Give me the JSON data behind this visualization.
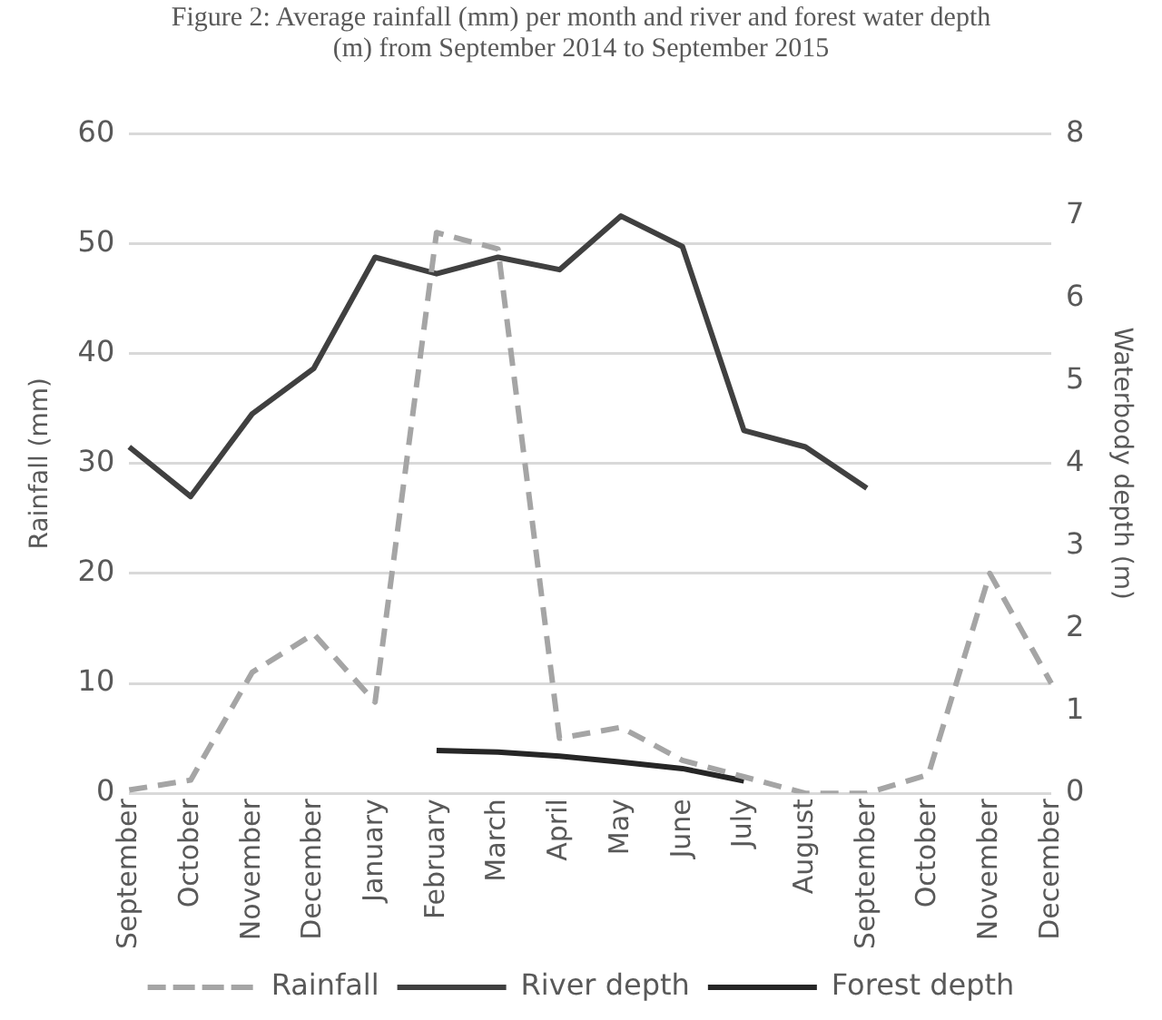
{
  "chart_data": {
    "type": "line",
    "title": "Figure 2: Average rainfall (mm) per month and river and forest water depth (m) from September 2014 to September 2015",
    "ylabel": "Rainfall (mm)",
    "y2label": "Waterbody depth (m)",
    "categories": [
      "September",
      "October",
      "November",
      "December",
      "January",
      "February",
      "March",
      "April",
      "May",
      "June",
      "July",
      "August",
      "September",
      "October",
      "November",
      "December"
    ],
    "series": [
      {
        "name": "Rainfall",
        "color": "#a5a5a5",
        "line_style": "dashed",
        "values": [
          0.3,
          1.2,
          11,
          14.5,
          8.3,
          51,
          49.5,
          5,
          6,
          3,
          1.5,
          0,
          0,
          1.7,
          20,
          10
        ]
      },
      {
        "name": "River depth",
        "color": "#404040",
        "axis": "y2",
        "values": [
          4.2,
          3.6,
          4.6,
          5.15,
          6.5,
          6.3,
          6.5,
          6.35,
          7,
          6.63,
          4.4,
          4.2,
          3.7,
          null,
          null,
          null
        ]
      },
      {
        "name": "Forest depth",
        "color": "#262626",
        "axis": "y2",
        "values": [
          null,
          null,
          null,
          null,
          null,
          0.52,
          0.5,
          0.45,
          0.38,
          0.3,
          0.15,
          null,
          null,
          null,
          null,
          null
        ]
      }
    ],
    "ylim": [
      0,
      60
    ],
    "yticks": [
      0,
      10,
      20,
      30,
      40,
      50,
      60
    ],
    "y2lim": [
      0,
      8
    ],
    "y2ticks": [
      0,
      1,
      2,
      3,
      4,
      5,
      6,
      7,
      8
    ],
    "grid": "y",
    "legend": "bottom",
    "marker": "none"
  }
}
